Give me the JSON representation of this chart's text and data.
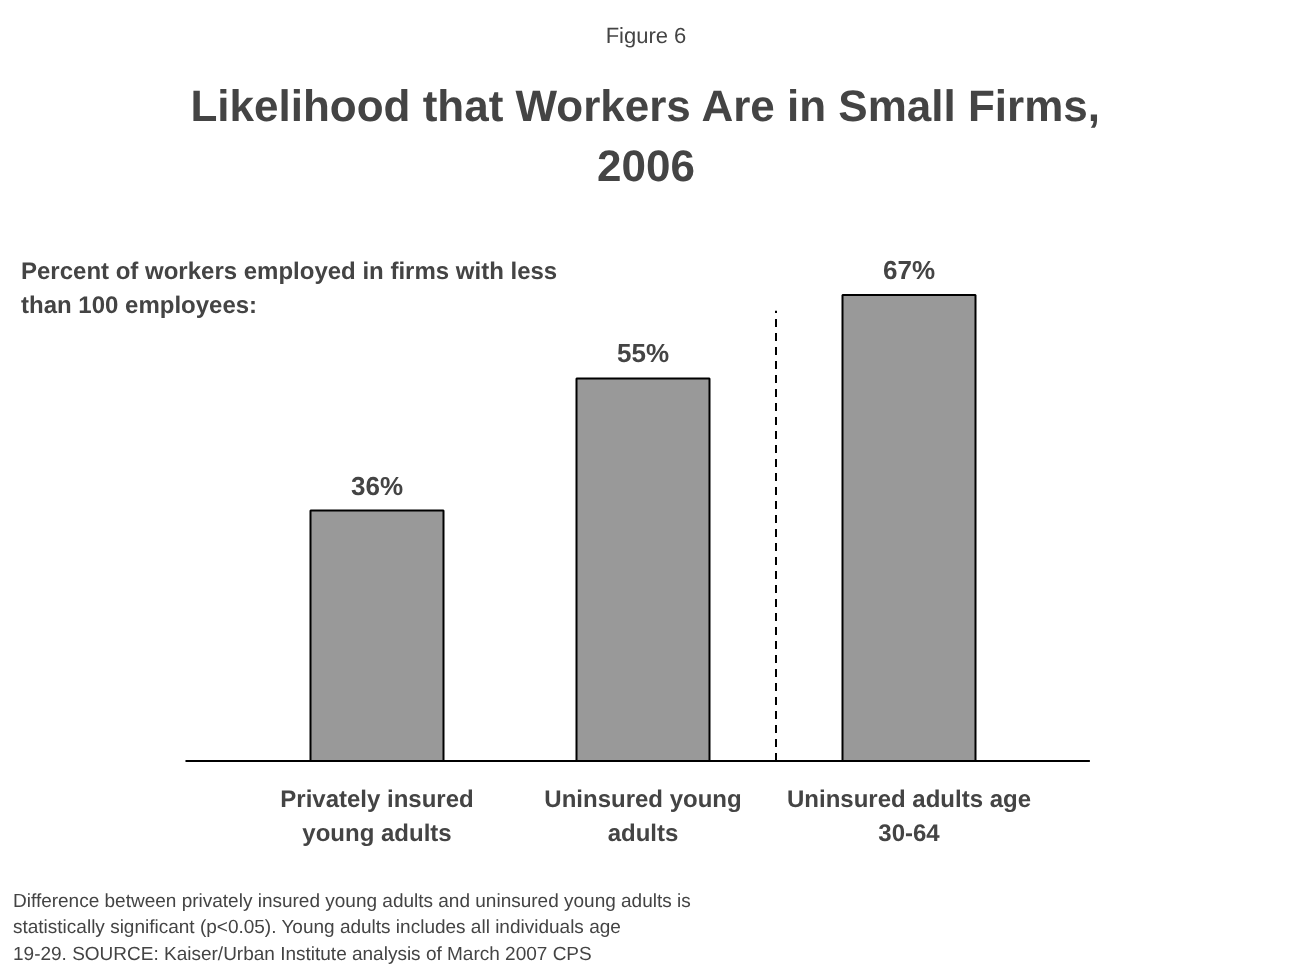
{
  "chart_data": {
    "type": "bar",
    "title": "Likelihood that Workers Are in Small Firms, 2006",
    "subtitle": "Percent of workers employed in firms with less than 100 employees:",
    "categories": [
      "Privately insured young adults",
      "Uninsured young adults",
      "Uninsured adults age 30-64"
    ],
    "values": [
      36,
      55,
      67
    ],
    "value_labels": [
      "36%",
      "55%",
      "67%"
    ],
    "color": "#999999",
    "annotations": [
      "Figure 6",
      "Difference between privately insured young adults and uninsured young adults is statistically significant (p<0.05). Young adults includes all individuals age 19-29. SOURCE: Kaiser/Urban Institute analysis of March 2007 CPS"
    ],
    "grid": false
  }
}
